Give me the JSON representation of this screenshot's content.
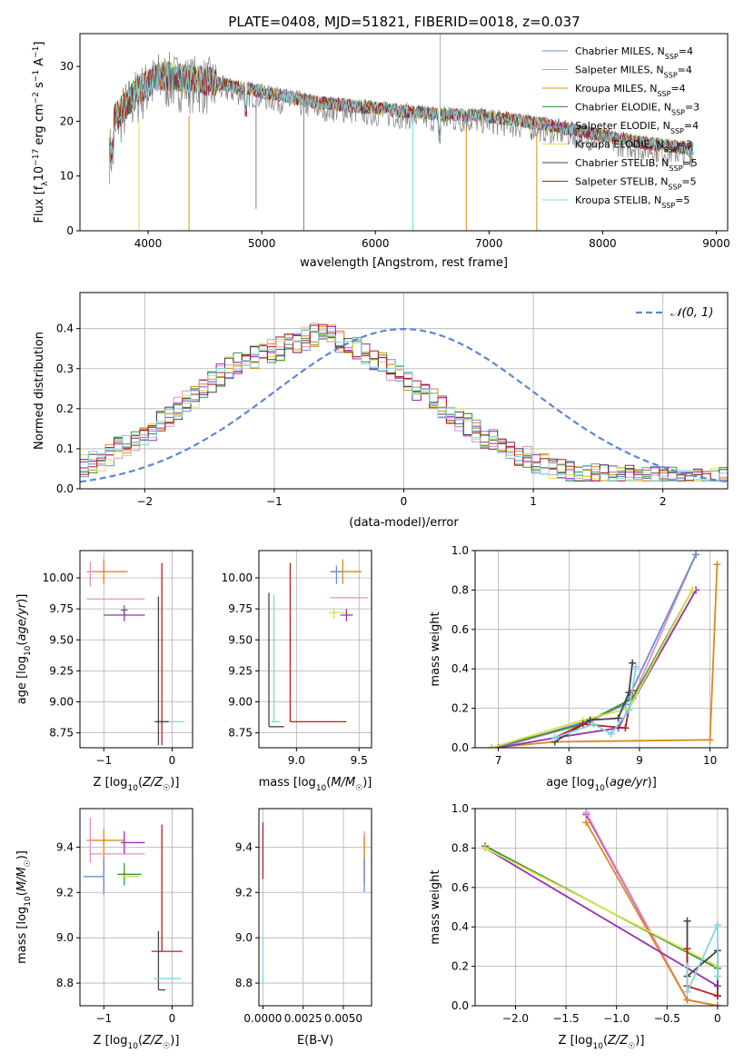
{
  "figure": {
    "title": "PLATE=0408, MJD=51821, FIBERID=0018, z=0.037"
  },
  "chart_data": [
    {
      "id": "spectrum",
      "type": "line",
      "xlabel": "wavelength [Angstrom, rest frame]",
      "ylabel": "Flux [f_λ 10^-17 erg cm^-2 s^-1 A^-1]",
      "xlim": [
        3400,
        9100
      ],
      "ylim": [
        0,
        36
      ],
      "xticks": [
        4000,
        5000,
        6000,
        7000,
        8000,
        9000
      ],
      "yticks": [
        0,
        10,
        20,
        30
      ],
      "legend_position": "top-right",
      "series": [
        {
          "name": "Chabrier MILES, N_SSP=4",
          "color": "#6a8fd0"
        },
        {
          "name": "Salpeter MILES, N_SSP=4",
          "color": "#e58fc7"
        },
        {
          "name": "Kroupa MILES, N_SSP=4",
          "color": "#d98b1a"
        },
        {
          "name": "Chabrier ELODIE, N_SSP=3",
          "color": "#3d9140"
        },
        {
          "name": "Salpeter ELODIE, N_SSP=4",
          "color": "#9b2fb5"
        },
        {
          "name": "Kroupa ELODIE, N_SSP=3",
          "color": "#d8e34a"
        },
        {
          "name": "Chabrier STELIB, N_SSP=5",
          "color": "#444444"
        },
        {
          "name": "Salpeter STELIB, N_SSP=5",
          "color": "#b41f1f"
        },
        {
          "name": "Kroupa STELIB, N_SSP=5",
          "color": "#7fd6e0"
        }
      ],
      "data_color": "#808080",
      "continuum": [
        [
          3700,
          20
        ],
        [
          3900,
          25
        ],
        [
          4100,
          28
        ],
        [
          4500,
          27
        ],
        [
          5000,
          25
        ],
        [
          5500,
          23
        ],
        [
          6000,
          22
        ],
        [
          6500,
          21
        ],
        [
          7000,
          20.5
        ],
        [
          7500,
          19
        ],
        [
          8000,
          17
        ],
        [
          8400,
          15.5
        ],
        [
          8800,
          14.5
        ]
      ]
    },
    {
      "id": "residuals",
      "type": "histogram",
      "xlabel": "(data-model)/error",
      "ylabel": "Normed distribution",
      "xlim": [
        -2.5,
        2.5
      ],
      "ylim": [
        0,
        0.49
      ],
      "xticks": [
        -2,
        -1,
        0,
        1,
        2
      ],
      "yticks": [
        0.0,
        0.1,
        0.2,
        0.3,
        0.4
      ],
      "grid": true,
      "legend_position": "top-right",
      "normal_label": "𝒩(0, 1)",
      "normal_color": "#5b87d6",
      "bin_width": 0.1,
      "base_heights": [
        0.06,
        0.065,
        0.07,
        0.085,
        0.1,
        0.11,
        0.115,
        0.13,
        0.145,
        0.165,
        0.18,
        0.2,
        0.215,
        0.23,
        0.25,
        0.27,
        0.285,
        0.3,
        0.31,
        0.32,
        0.33,
        0.34,
        0.345,
        0.35,
        0.36,
        0.37,
        0.375,
        0.385,
        0.385,
        0.38,
        0.37,
        0.36,
        0.35,
        0.34,
        0.325,
        0.31,
        0.295,
        0.28,
        0.265,
        0.25,
        0.235,
        0.22,
        0.205,
        0.19,
        0.175,
        0.16,
        0.145,
        0.13,
        0.118,
        0.105,
        0.095,
        0.085,
        0.076,
        0.068,
        0.06,
        0.055,
        0.05,
        0.046,
        0.042,
        0.038,
        0.035,
        0.033,
        0.031,
        0.03,
        0.029,
        0.028,
        0.027,
        0.026,
        0.025,
        0.025,
        0.025,
        0.025,
        0.025,
        0.025,
        0.025,
        0.025
      ]
    },
    {
      "id": "age-vs-Z",
      "type": "errorbar",
      "xlabel": "Z [log10(Z/Z☉)]",
      "ylabel": "age [log10(age/yr)]",
      "xlim": [
        -1.35,
        0.3
      ],
      "ylim": [
        8.63,
        10.22
      ],
      "xticks": [
        -1,
        0
      ],
      "yticks": [
        8.75,
        9.0,
        9.25,
        9.5,
        9.75,
        10.0,
        10.25
      ],
      "points": [
        {
          "x": -1.0,
          "y": 10.05,
          "xerr": [
            0.25,
            0.35
          ],
          "yerr": [
            0.1,
            0.1
          ],
          "color": "#d98b1a"
        },
        {
          "x": -1.2,
          "y": 10.05,
          "xerr": [
            0.05,
            0.05
          ],
          "yerr": [
            0.12,
            0.08
          ],
          "color": "#e58fc7"
        },
        {
          "x": -0.9,
          "y": 9.83,
          "xerr": [
            0.35,
            0.5
          ],
          "yerr": [
            0.0,
            0.0
          ],
          "color": "#e58fc7"
        },
        {
          "x": -0.7,
          "y": 9.74,
          "xerr": [
            0.05,
            0.05
          ],
          "yerr": [
            0.04,
            0.04
          ],
          "color": "#3d9140"
        },
        {
          "x": -0.7,
          "y": 9.7,
          "xerr": [
            0.3,
            0.3
          ],
          "yerr": [
            0.05,
            0.05
          ],
          "color": "#9b2fb5"
        },
        {
          "x": -0.12,
          "y": 8.84,
          "xerr": [
            0.15,
            0.3
          ],
          "yerr": [
            0.0,
            0.0
          ],
          "color": "#7fd6e0"
        },
        {
          "x": -0.15,
          "y": 9.3,
          "xerr": [
            0.0,
            0.0
          ],
          "yerr": [
            0.65,
            0.82
          ],
          "color": "#b41f1f"
        },
        {
          "x": -0.2,
          "y": 9.25,
          "xerr": [
            0.0,
            0.0
          ],
          "yerr": [
            0.6,
            0.6
          ],
          "color": "#444444"
        },
        {
          "x": -0.15,
          "y": 8.84,
          "xerr": [
            0.1,
            0.1
          ],
          "yerr": [
            0.0,
            0.0
          ],
          "color": "#444444"
        }
      ]
    },
    {
      "id": "age-vs-mass",
      "type": "errorbar",
      "xlabel": "mass [log10(M/M☉)]",
      "ylabel": "",
      "xlim": [
        8.7,
        9.6
      ],
      "ylim": [
        8.63,
        10.22
      ],
      "xticks": [
        9.0,
        9.5
      ],
      "yticks": [
        8.75,
        9.0,
        9.25,
        9.5,
        9.75,
        10.0,
        10.25
      ],
      "points": [
        {
          "x": 9.37,
          "y": 10.05,
          "xerr": [
            0.1,
            0.15
          ],
          "yerr": [
            0.1,
            0.1
          ],
          "color": "#d98b1a"
        },
        {
          "x": 9.32,
          "y": 10.05,
          "xerr": [
            0.05,
            0.05
          ],
          "yerr": [
            0.1,
            0.05
          ],
          "color": "#6a8fd0"
        },
        {
          "x": 9.37,
          "y": 9.84,
          "xerr": [
            0.1,
            0.2
          ],
          "yerr": [
            0.0,
            0.0
          ],
          "color": "#e58fc7"
        },
        {
          "x": 9.3,
          "y": 9.72,
          "xerr": [
            0.04,
            0.1
          ],
          "yerr": [
            0.05,
            0.03
          ],
          "color": "#d8e34a"
        },
        {
          "x": 9.4,
          "y": 9.7,
          "xerr": [
            0.05,
            0.05
          ],
          "yerr": [
            0.05,
            0.05
          ],
          "color": "#9b2fb5"
        },
        {
          "x": 8.95,
          "y": 8.84,
          "xerr": [
            0.0,
            0.45
          ],
          "yerr": [
            0.0,
            1.28
          ],
          "color": "#b41f1f"
        },
        {
          "x": 8.82,
          "y": 8.84,
          "xerr": [
            0.02,
            0.05
          ],
          "yerr": [
            0.0,
            1.03
          ],
          "color": "#7fd6e0"
        },
        {
          "x": 8.78,
          "y": 8.8,
          "xerr": [
            0.0,
            0.12
          ],
          "yerr": [
            0.0,
            1.08
          ],
          "color": "#444444"
        }
      ]
    },
    {
      "id": "weight-vs-age",
      "type": "line",
      "xlabel": "age  [log10(age/yr)]",
      "ylabel": "mass weight",
      "xlim": [
        6.67,
        10.25
      ],
      "ylim": [
        0,
        1
      ],
      "xticks": [
        7,
        8,
        9,
        10
      ],
      "yticks": [
        0.0,
        0.2,
        0.4,
        0.6,
        0.8,
        1.0
      ],
      "grid": true,
      "series": [
        {
          "color": "#d98b1a",
          "points": [
            [
              6.9,
              0.0
            ],
            [
              7.8,
              0.03
            ],
            [
              10.0,
              0.04
            ],
            [
              10.1,
              0.93
            ]
          ]
        },
        {
          "color": "#e58fc7",
          "points": [
            [
              7.0,
              0.0
            ],
            [
              8.3,
              0.13
            ],
            [
              8.9,
              0.25
            ],
            [
              9.8,
              0.98
            ]
          ]
        },
        {
          "color": "#6a8fd0",
          "points": [
            [
              7.0,
              0.0
            ],
            [
              8.3,
              0.14
            ],
            [
              8.8,
              0.22
            ],
            [
              9.8,
              0.98
            ]
          ]
        },
        {
          "color": "#9b2fb5",
          "points": [
            [
              7.0,
              0.0
            ],
            [
              7.8,
              0.05
            ],
            [
              8.7,
              0.1
            ],
            [
              8.85,
              0.2
            ],
            [
              9.8,
              0.8
            ]
          ]
        },
        {
          "color": "#3d9140",
          "points": [
            [
              6.9,
              0.0
            ],
            [
              8.2,
              0.12
            ],
            [
              8.9,
              0.25
            ],
            [
              9.75,
              0.8
            ]
          ]
        },
        {
          "color": "#d8e34a",
          "points": [
            [
              6.9,
              0.0
            ],
            [
              8.2,
              0.14
            ],
            [
              8.85,
              0.2
            ],
            [
              9.75,
              0.8
            ]
          ]
        },
        {
          "color": "#444444",
          "points": [
            [
              7.8,
              0.03
            ],
            [
              8.3,
              0.14
            ],
            [
              8.7,
              0.15
            ],
            [
              8.85,
              0.28
            ],
            [
              8.9,
              0.43
            ]
          ]
        },
        {
          "color": "#b41f1f",
          "points": [
            [
              7.8,
              0.05
            ],
            [
              8.2,
              0.12
            ],
            [
              8.8,
              0.1
            ],
            [
              8.9,
              0.29
            ]
          ]
        },
        {
          "color": "#7fd6e0",
          "points": [
            [
              7.8,
              0.05
            ],
            [
              8.35,
              0.12
            ],
            [
              8.6,
              0.07
            ],
            [
              8.85,
              0.19
            ],
            [
              8.95,
              0.41
            ]
          ]
        }
      ]
    },
    {
      "id": "mass-vs-Z",
      "type": "errorbar",
      "xlabel": "Z [log10(Z/Z☉)]",
      "ylabel": "mass [log10(M/M☉)]",
      "xlim": [
        -1.35,
        0.3
      ],
      "ylim": [
        8.7,
        9.57
      ],
      "xticks": [
        -1,
        0
      ],
      "yticks": [
        8.8,
        9.0,
        9.2,
        9.4
      ],
      "points": [
        {
          "x": -1.0,
          "y": 9.43,
          "xerr": [
            0.25,
            0.3
          ],
          "yerr": [
            0.22,
            0.05
          ],
          "color": "#d98b1a"
        },
        {
          "x": -1.2,
          "y": 9.43,
          "xerr": [
            0.03,
            0.03
          ],
          "yerr": [
            0.1,
            0.1
          ],
          "color": "#e58fc7"
        },
        {
          "x": -0.9,
          "y": 9.37,
          "xerr": [
            0.3,
            0.5
          ],
          "yerr": [
            0.0,
            0.0
          ],
          "color": "#e58fc7"
        },
        {
          "x": -1.0,
          "y": 9.27,
          "xerr": [
            0.3,
            0.0
          ],
          "yerr": [
            0.08,
            0.08
          ],
          "color": "#6a8fd0"
        },
        {
          "x": -0.7,
          "y": 9.42,
          "xerr": [
            0.05,
            0.3
          ],
          "yerr": [
            0.05,
            0.05
          ],
          "color": "#9b2fb5"
        },
        {
          "x": -0.7,
          "y": 9.28,
          "xerr": [
            0.1,
            0.25
          ],
          "yerr": [
            0.05,
            0.05
          ],
          "color": "#3d9140"
        },
        {
          "x": -0.68,
          "y": 9.27,
          "xerr": [
            0.05,
            0.2
          ],
          "yerr": [
            0.0,
            0.0
          ],
          "color": "#d8e34a"
        },
        {
          "x": -0.15,
          "y": 8.94,
          "xerr": [
            0.15,
            0.3
          ],
          "yerr": [
            0.0,
            0.56
          ],
          "color": "#b41f1f"
        },
        {
          "x": -0.2,
          "y": 8.77,
          "xerr": [
            0.0,
            0.1
          ],
          "yerr": [
            0.0,
            0.26
          ],
          "color": "#444444"
        },
        {
          "x": -0.12,
          "y": 8.82,
          "xerr": [
            0.15,
            0.25
          ],
          "yerr": [
            0.0,
            0.0
          ],
          "color": "#7fd6e0"
        }
      ]
    },
    {
      "id": "mass-vs-EBV",
      "type": "errorbar",
      "xlabel": "E(B-V)",
      "ylabel": "",
      "xlim": [
        -0.00025,
        0.00675
      ],
      "ylim": [
        8.7,
        9.57
      ],
      "xticks": [
        0.0,
        0.0025,
        0.005
      ],
      "xticklabels": [
        "0.0000",
        "0.0025",
        "0.0050"
      ],
      "yticks": [
        8.8,
        9.0,
        9.2,
        9.4
      ],
      "points": [
        {
          "x": 0.0,
          "y": 9.26,
          "xerr": [
            0.0,
            0.0
          ],
          "yerr": [
            0.0,
            0.25
          ],
          "color": "#b41f1f"
        },
        {
          "x": 0.0,
          "y": 8.8,
          "xerr": [
            0.0,
            0.0
          ],
          "yerr": [
            0.0,
            0.2
          ],
          "color": "#7fd6e0"
        },
        {
          "x": 0.0063,
          "y": 9.35,
          "xerr": [
            0.0,
            0.0
          ],
          "yerr": [
            0.12,
            0.12
          ],
          "color": "#e58fc7"
        },
        {
          "x": 0.0063,
          "y": 9.35,
          "xerr": [
            0.0,
            0.0
          ],
          "yerr": [
            0.1,
            0.1
          ],
          "color": "#d98b1a"
        },
        {
          "x": 0.0063,
          "y": 9.3,
          "xerr": [
            0.0,
            0.0
          ],
          "yerr": [
            0.1,
            0.05
          ],
          "color": "#6a8fd0"
        }
      ]
    },
    {
      "id": "weight-vs-Z",
      "type": "line",
      "xlabel": "Z [log10(Z/Z☉)]",
      "ylabel": "mass weight",
      "xlim": [
        -2.4,
        0.1
      ],
      "ylim": [
        0,
        1
      ],
      "xticks": [
        -2.0,
        -1.5,
        -1.0,
        -0.5,
        0.0
      ],
      "yticks": [
        0.0,
        0.2,
        0.4,
        0.6,
        0.8,
        1.0
      ],
      "grid": true,
      "series": [
        {
          "color": "#9b2fb5",
          "points": [
            [
              -1.3,
              0.97
            ],
            [
              -0.3,
              0.03
            ],
            [
              0.0,
              0.0
            ]
          ]
        },
        {
          "color": "#e58fc7",
          "points": [
            [
              -1.3,
              0.98
            ],
            [
              -0.3,
              0.03
            ],
            [
              0.0,
              0.0
            ]
          ]
        },
        {
          "color": "#d98b1a",
          "points": [
            [
              -1.3,
              0.93
            ],
            [
              -0.3,
              0.03
            ],
            [
              0.0,
              0.0
            ]
          ]
        },
        {
          "color": "#3d9140",
          "points": [
            [
              -2.3,
              0.81
            ],
            [
              0.0,
              0.19
            ]
          ]
        },
        {
          "color": "#9b2fb5",
          "points": [
            [
              -2.3,
              0.8
            ],
            [
              0.0,
              0.1
            ]
          ]
        },
        {
          "color": "#d8e34a",
          "points": [
            [
              -2.3,
              0.8
            ],
            [
              0.0,
              0.2
            ]
          ]
        },
        {
          "color": "#444444",
          "points": [
            [
              -0.3,
              0.43
            ],
            [
              -0.3,
              0.15
            ],
            [
              0.0,
              0.28
            ],
            [
              0.0,
              0.05
            ]
          ]
        },
        {
          "color": "#b41f1f",
          "points": [
            [
              -0.3,
              0.29
            ],
            [
              -0.3,
              0.1
            ],
            [
              0.0,
              0.05
            ]
          ]
        },
        {
          "color": "#7fd6e0",
          "points": [
            [
              -0.3,
              0.2
            ],
            [
              -0.3,
              0.07
            ],
            [
              0.0,
              0.41
            ],
            [
              0.0,
              0.15
            ]
          ]
        }
      ]
    }
  ]
}
